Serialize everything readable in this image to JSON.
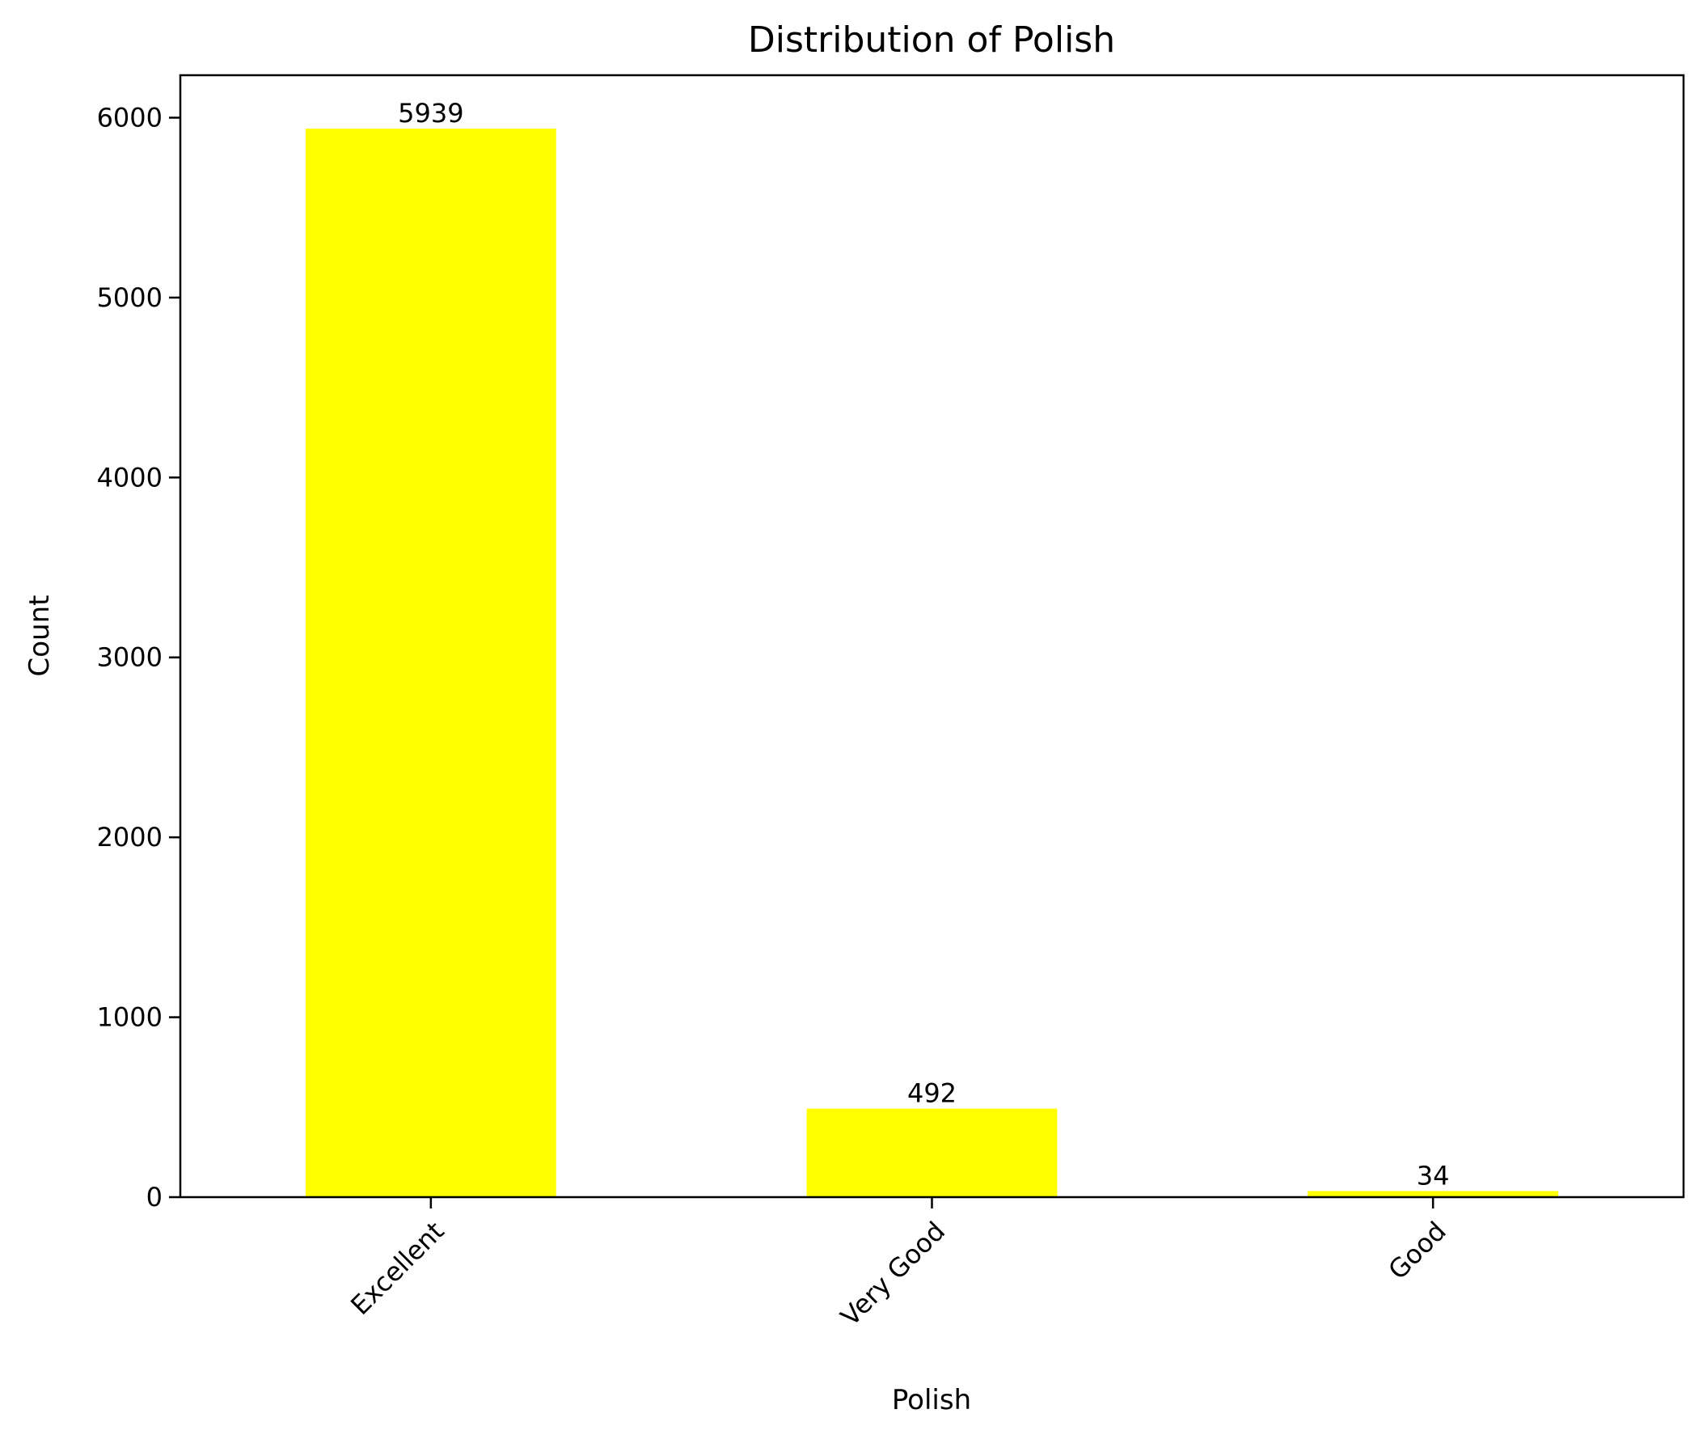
{
  "chart_data": {
    "type": "bar",
    "title": "Distribution of Polish",
    "xlabel": "Polish",
    "ylabel": "Count",
    "categories": [
      "Excellent",
      "Very Good",
      "Good"
    ],
    "values": [
      5939,
      492,
      34
    ],
    "data_labels": [
      "5939",
      "492",
      "34"
    ],
    "ylim": [
      0,
      6236
    ],
    "yticks": [
      0,
      1000,
      2000,
      3000,
      4000,
      5000,
      6000
    ],
    "ytick_labels": [
      "0",
      "1000",
      "2000",
      "3000",
      "4000",
      "5000",
      "6000"
    ],
    "grid": false,
    "legend": "none",
    "colors": {
      "bar": "#ffff00",
      "axis": "#000000",
      "background": "#ffffff"
    }
  }
}
